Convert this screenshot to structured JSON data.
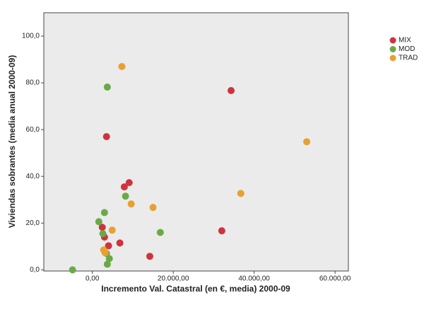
{
  "chart_data": {
    "type": "scatter",
    "x_label": "Incremento Val. Catastral (en €, media) 2000-09",
    "y_label": "Viviendas sobrantes (media anual 2000-09)",
    "xlim": [
      -12000,
      63300
    ],
    "ylim": [
      -0.5,
      110
    ],
    "xticks": [
      {
        "value": 0,
        "label": "0,00"
      },
      {
        "value": 20000,
        "label": "20.000,00"
      },
      {
        "value": 40000,
        "label": "40.000,00"
      },
      {
        "value": 60000,
        "label": "60.000,00"
      }
    ],
    "yticks": [
      {
        "value": 0,
        "label": "0,0"
      },
      {
        "value": 20,
        "label": "20,0"
      },
      {
        "value": 40,
        "label": "40,0"
      },
      {
        "value": 60,
        "label": "60,0"
      },
      {
        "value": 80,
        "label": "80,0"
      },
      {
        "value": 100,
        "label": "100,0"
      }
    ],
    "series": [
      {
        "name": "MIX",
        "color": "#d1323c",
        "x": [
          34300,
          3500,
          9100,
          7900,
          2450,
          3000,
          4000,
          6800,
          14200,
          32000
        ],
        "values": [
          76.7,
          57,
          37.3,
          35.5,
          18.2,
          14,
          10.3,
          11.5,
          5.8,
          16.7
        ]
      },
      {
        "name": "MOD",
        "color": "#6aaa46",
        "x": [
          3700,
          8200,
          3000,
          1600,
          2600,
          16800,
          3500,
          4200,
          3700,
          -4900
        ],
        "values": [
          78.2,
          31.5,
          24.5,
          20.6,
          15.5,
          16,
          7,
          4.8,
          2.4,
          0
        ]
      },
      {
        "name": "TRAD",
        "color": "#e8a030",
        "x": [
          7300,
          53000,
          36700,
          9600,
          15000,
          4900,
          2800,
          3150
        ],
        "values": [
          87,
          54.8,
          32.7,
          28.2,
          26.7,
          17,
          8.5,
          7.3
        ]
      }
    ]
  }
}
